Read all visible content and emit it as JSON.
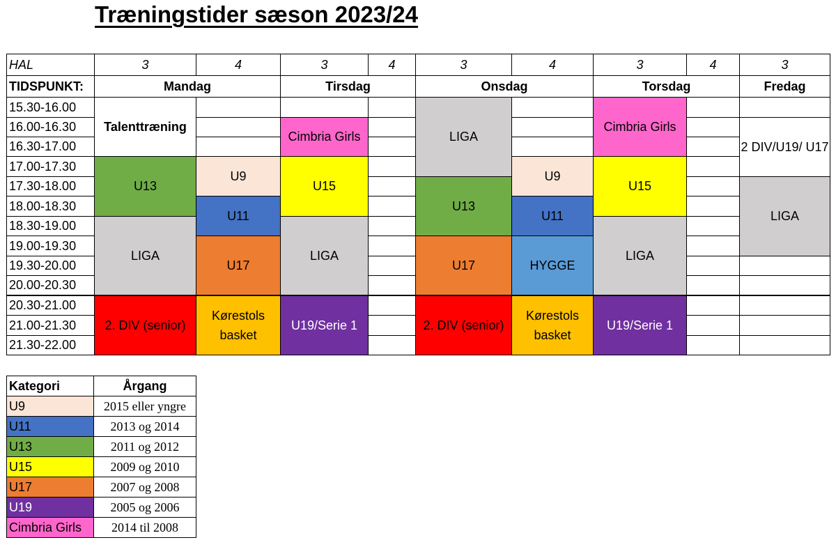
{
  "title": "Træningstider sæson 2023/24",
  "colors": {
    "U9": "#fbe5d6",
    "U11": "#4472c4",
    "U13": "#70ad47",
    "U15": "#ffff00",
    "U17": "#ed7d31",
    "U19": "#7030a0",
    "Cimbria Girls": "#ff66cc",
    "LIGA": "#d0cece",
    "2DIV": "#ff0000",
    "Korestols": "#ffc000",
    "HYGGE": "#5b9bd5"
  },
  "schedule": {
    "hal_label": "HAL",
    "tidspunkt_label": "TIDSPUNKT:",
    "hal_numbers": [
      "3",
      "4",
      "3",
      "4",
      "3",
      "4",
      "3",
      "4",
      "3"
    ],
    "days": [
      "Mandag",
      "Tirsdag",
      "Onsdag",
      "Torsdag",
      "Fredag"
    ],
    "times": [
      "15.30-16.00",
      "16.00-16.30",
      "16.30-17.00",
      "17.00-17.30",
      "17.30-18.00",
      "18.00-18.30",
      "18.30-19.00",
      "19.00-19.30",
      "19.30-20.00",
      "20.00-20.30",
      "20.30-21.00",
      "21.00-21.30",
      "21.30-22.00"
    ],
    "blocks": {
      "mon_talent": "Talenttræning",
      "mon_u13": "U13",
      "mon_liga": "LIGA",
      "mon_2div": "2. DIV (senior)",
      "mon4_u9": "U9",
      "mon4_u11": "U11",
      "mon4_u17": "U17",
      "mon4_korestols": "Kørestols basket",
      "tue_cimbria": "Cimbria Girls",
      "tue_u15": "U15",
      "tue_liga": "LIGA",
      "tue_u19": "U19/Serie 1",
      "wed_liga": "LIGA",
      "wed_u13": "U13",
      "wed_u17": "U17",
      "wed_2div": "2. DIV (senior)",
      "wed4_u9": "U9",
      "wed4_u11": "U11",
      "wed4_hygge": "HYGGE",
      "wed4_korestols": "Kørestols basket",
      "thu_cimbria": "Cimbria Girls",
      "thu_u15": "U15",
      "thu_liga": "LIGA",
      "thu_u19": "U19/Serie 1",
      "fri_div": "2 DIV/U19/ U17",
      "fri_liga": "LIGA"
    }
  },
  "legend": {
    "headers": [
      "Kategori",
      "Årgang"
    ],
    "rows": [
      {
        "category": "U9",
        "year": "2015 eller yngre"
      },
      {
        "category": "U11",
        "year": "2013 og 2014"
      },
      {
        "category": "U13",
        "year": "2011 og 2012"
      },
      {
        "category": "U15",
        "year": "2009 og 2010"
      },
      {
        "category": "U17",
        "year": "2007 og 2008"
      },
      {
        "category": "U19",
        "year": "2005 og 2006"
      },
      {
        "category": "Cimbria Girls",
        "year": "2014 til 2008"
      }
    ]
  }
}
